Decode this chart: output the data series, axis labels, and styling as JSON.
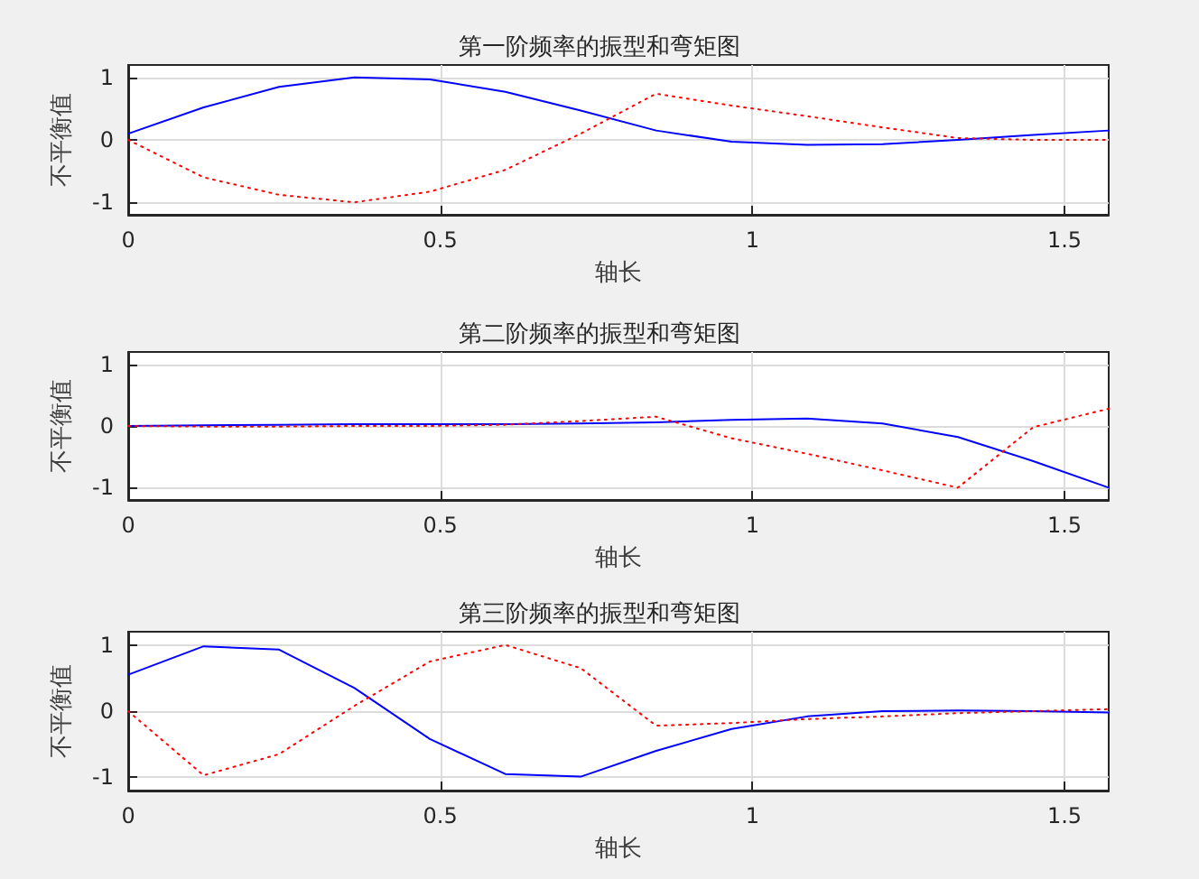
{
  "chart_data": [
    {
      "type": "line",
      "title": "第一阶频率的振型和弯矩图",
      "xlabel": "轴长",
      "ylabel": "不平衡值",
      "xlim": [
        0,
        1.5708
      ],
      "ylim": [
        -1.2,
        1.2
      ],
      "xticks": [
        0,
        0.5,
        1,
        1.5
      ],
      "yticks": [
        -1,
        0,
        1
      ],
      "grid": true,
      "x": [
        0,
        0.1208,
        0.2417,
        0.3625,
        0.4833,
        0.6042,
        0.725,
        0.8458,
        0.9667,
        1.0875,
        1.2083,
        1.3292,
        1.45,
        1.5708
      ],
      "series": [
        {
          "color": "#0000ff",
          "line_style": "solid",
          "values": [
            0.1,
            0.52,
            0.85,
            1.0,
            0.97,
            0.77,
            0.47,
            0.15,
            -0.03,
            -0.08,
            -0.07,
            0.0,
            0.08,
            0.15
          ]
        },
        {
          "color": "#ff0000",
          "line_style": "dotted",
          "values": [
            0,
            -0.6,
            -0.88,
            -1.0,
            -0.83,
            -0.48,
            0.1,
            0.74,
            0.55,
            0.38,
            0.2,
            0.03,
            0.0,
            0.0
          ]
        }
      ]
    },
    {
      "type": "line",
      "title": "第二阶频率的振型和弯矩图",
      "xlabel": "轴长",
      "ylabel": "不平衡值",
      "xlim": [
        0,
        1.5708
      ],
      "ylim": [
        -1.2,
        1.2
      ],
      "xticks": [
        0,
        0.5,
        1,
        1.5
      ],
      "yticks": [
        -1,
        0,
        1
      ],
      "grid": true,
      "x": [
        0,
        0.1208,
        0.2417,
        0.3625,
        0.4833,
        0.6042,
        0.725,
        0.8458,
        0.9667,
        1.0875,
        1.2083,
        1.3292,
        1.45,
        1.5708
      ],
      "series": [
        {
          "color": "#0000ff",
          "line_style": "solid",
          "values": [
            0,
            0.01,
            0.02,
            0.03,
            0.03,
            0.03,
            0.04,
            0.06,
            0.1,
            0.12,
            0.04,
            -0.18,
            -0.57,
            -1.0
          ]
        },
        {
          "color": "#ff0000",
          "line_style": "dotted",
          "values": [
            0,
            -0.01,
            -0.01,
            0,
            0,
            0.02,
            0.08,
            0.15,
            -0.2,
            -0.45,
            -0.72,
            -1.0,
            -0.02,
            0.28
          ]
        }
      ]
    },
    {
      "type": "line",
      "title": "第三阶频率的振型和弯矩图",
      "xlabel": "轴长",
      "ylabel": "不平衡值",
      "xlim": [
        0,
        1.5708
      ],
      "ylim": [
        -1.2,
        1.2
      ],
      "xticks": [
        0,
        0.5,
        1,
        1.5
      ],
      "yticks": [
        -1,
        0,
        1
      ],
      "grid": true,
      "x": [
        0,
        0.1208,
        0.2417,
        0.3625,
        0.4833,
        0.6042,
        0.725,
        0.8458,
        0.9667,
        1.0875,
        1.2083,
        1.3292,
        1.45,
        1.5708
      ],
      "series": [
        {
          "color": "#0000ff",
          "line_style": "solid",
          "values": [
            0.55,
            0.98,
            0.93,
            0.35,
            -0.42,
            -0.95,
            -0.99,
            -0.6,
            -0.27,
            -0.08,
            0.0,
            0.01,
            0.0,
            -0.02
          ]
        },
        {
          "color": "#ff0000",
          "line_style": "dotted",
          "values": [
            0,
            -0.97,
            -0.65,
            0.08,
            0.75,
            1.0,
            0.65,
            -0.22,
            -0.18,
            -0.12,
            -0.08,
            -0.03,
            0.0,
            0.03
          ]
        }
      ]
    }
  ]
}
